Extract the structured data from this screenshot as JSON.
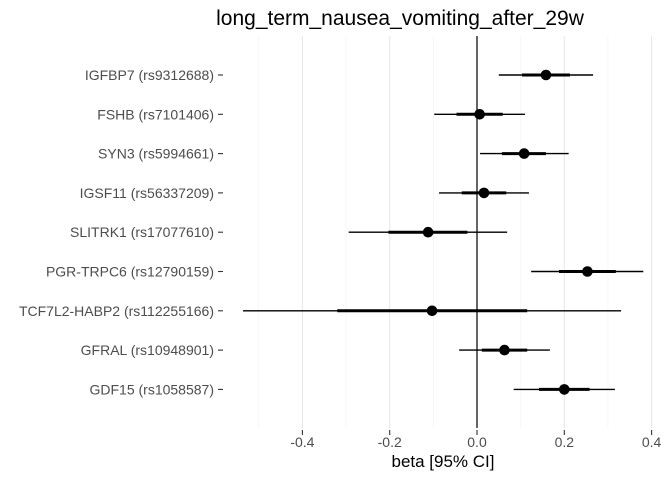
{
  "chart_data": {
    "type": "forest",
    "title": "long_term_nausea_vomiting_after_29w",
    "xlabel": "beta [95% CI]",
    "ylabel": "",
    "xlim": [
      -0.54,
      0.42
    ],
    "xticks": [
      -0.4,
      -0.2,
      0.0,
      0.2,
      0.4
    ],
    "xtick_labels": [
      "-0.4",
      "-0.2",
      "0.0",
      "0.2",
      "0.4"
    ],
    "reference_line": 0,
    "grid": "vertical major and minor gridlines",
    "point_color": "#000000",
    "categories": [
      "IGFBP7 (rs9312688)",
      "FSHB (rs7101406)",
      "SYN3 (rs5994661)",
      "IGSF11 (rs56337209)",
      "SLITRK1 (rs17077610)",
      "PGR-TRPC6 (rs12790159)",
      "TCF7L2-HABP2 (rs112255166)",
      "GFRAL (rs10948901)",
      "GDF15 (rs1058587)"
    ],
    "beta": [
      0.158,
      0.006,
      0.108,
      0.016,
      -0.112,
      0.253,
      -0.103,
      0.063,
      0.2
    ],
    "ci95_low": [
      0.05,
      -0.098,
      0.007,
      -0.087,
      -0.294,
      0.124,
      -0.536,
      -0.041,
      0.084
    ],
    "ci95_high": [
      0.266,
      0.11,
      0.21,
      0.119,
      0.069,
      0.381,
      0.33,
      0.167,
      0.316
    ],
    "inner_low": [
      0.103,
      -0.047,
      0.057,
      -0.035,
      -0.203,
      0.188,
      -0.32,
      0.011,
      0.142
    ],
    "inner_high": [
      0.213,
      0.059,
      0.158,
      0.067,
      -0.022,
      0.318,
      0.115,
      0.115,
      0.258
    ]
  }
}
